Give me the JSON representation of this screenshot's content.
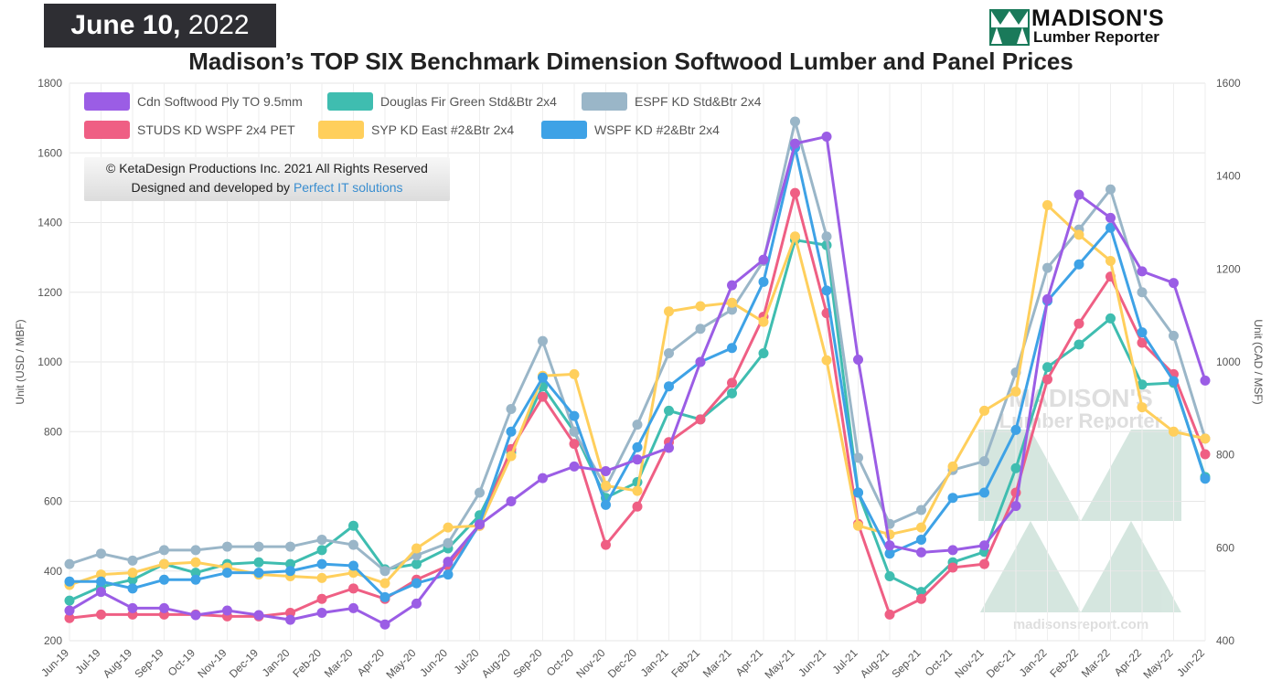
{
  "header": {
    "date_md": "June 10,",
    "date_year": "2022",
    "logo_line1": "MADISON'S",
    "logo_line2": "Lumber Reporter",
    "title": "Madison’s TOP SIX Benchmark Dimension Softwood Lumber and Panel Prices"
  },
  "credits": {
    "line1": "© KetaDesign Productions Inc. 2021 All Rights Reserved",
    "line2_prefix": "Designed and developed by ",
    "line2_link": "Perfect IT solutions"
  },
  "watermark": {
    "line1": "MADISON'S",
    "line2": "Lumber Reporter",
    "url": "madisonsreport.com"
  },
  "chart_data": {
    "type": "line",
    "ylabel_left": "Unit (USD / MBF)",
    "ylabel_right": "Unit (CAD / MSF)",
    "ylim_left": [
      200,
      1800
    ],
    "ylim_right": [
      400,
      1600
    ],
    "yticks_left": [
      200,
      400,
      600,
      800,
      1000,
      1200,
      1400,
      1600,
      1800
    ],
    "yticks_right": [
      400,
      600,
      800,
      1000,
      1200,
      1400,
      1600
    ],
    "grid": true,
    "legend_position": "top-left",
    "categories": [
      "Jun-19",
      "Jul-19",
      "Aug-19",
      "Sep-19",
      "Oct-19",
      "Nov-19",
      "Dec-19",
      "Jan-20",
      "Feb-20",
      "Mar-20",
      "Apr-20",
      "May-20",
      "Jun-20",
      "Jul-20",
      "Aug-20",
      "Sep-20",
      "Oct-20",
      "Nov-20",
      "Dec-20",
      "Jan-21",
      "Feb-21",
      "Mar-21",
      "Apr-21",
      "May-21",
      "Jun-21",
      "Jul-21",
      "Aug-21",
      "Sep-21",
      "Oct-21",
      "Nov-21",
      "Dec-21",
      "Jan-22",
      "Feb-22",
      "Mar-22",
      "Apr-22",
      "May-22",
      "Jun-22"
    ],
    "series": [
      {
        "name": "Cdn Softwood Ply TO 9.5mm",
        "axis": "right",
        "color": "#9b5de5",
        "values": [
          465,
          505,
          470,
          470,
          455,
          465,
          455,
          445,
          460,
          470,
          435,
          480,
          570,
          650,
          700,
          750,
          775,
          765,
          790,
          815,
          1000,
          1165,
          1220,
          1470,
          1485,
          1005,
          605,
          590,
          595,
          605,
          690,
          1135,
          1360,
          1310,
          1195,
          1170,
          960
        ]
      },
      {
        "name": "Douglas Fir Green Std&Btr 2x4",
        "axis": "left",
        "color": "#3fbdb0",
        "values": [
          315,
          355,
          375,
          420,
          395,
          420,
          425,
          420,
          460,
          530,
          405,
          420,
          465,
          560,
          740,
          930,
          800,
          610,
          655,
          860,
          835,
          910,
          1025,
          1350,
          1335,
          625,
          385,
          340,
          425,
          455,
          695,
          985,
          1050,
          1125,
          935,
          940,
          670
        ]
      },
      {
        "name": "ESPF KD Std&Btr 2x4",
        "axis": "left",
        "color": "#9ab6c8",
        "values": [
          420,
          450,
          430,
          460,
          460,
          470,
          470,
          470,
          490,
          475,
          400,
          445,
          480,
          625,
          865,
          1060,
          800,
          640,
          820,
          1025,
          1095,
          1150,
          1290,
          1690,
          1360,
          725,
          535,
          575,
          690,
          715,
          970,
          1270,
          1380,
          1495,
          1200,
          1075,
          780
        ]
      },
      {
        "name": "STUDS KD WSPF 2x4 PET",
        "axis": "left",
        "color": "#ef5f84",
        "values": [
          265,
          275,
          275,
          275,
          275,
          270,
          270,
          280,
          320,
          350,
          320,
          375,
          415,
          530,
          750,
          900,
          765,
          475,
          585,
          770,
          835,
          940,
          1130,
          1485,
          1140,
          535,
          275,
          320,
          410,
          420,
          625,
          950,
          1110,
          1245,
          1055,
          965,
          735
        ]
      },
      {
        "name": "SYP KD East #2&Btr 2x4",
        "axis": "left",
        "color": "#ffcf5c",
        "values": [
          360,
          390,
          395,
          420,
          425,
          410,
          390,
          385,
          380,
          395,
          365,
          465,
          525,
          530,
          730,
          960,
          965,
          645,
          630,
          1145,
          1160,
          1170,
          1115,
          1360,
          1005,
          530,
          505,
          525,
          700,
          860,
          915,
          1450,
          1365,
          1290,
          870,
          800,
          780
        ]
      },
      {
        "name": "WSPF KD #2&Btr 2x4",
        "axis": "left",
        "color": "#3ea2e6",
        "values": [
          370,
          370,
          350,
          375,
          375,
          395,
          395,
          400,
          420,
          415,
          325,
          365,
          390,
          535,
          800,
          955,
          845,
          590,
          755,
          930,
          1000,
          1040,
          1230,
          1615,
          1205,
          625,
          450,
          490,
          610,
          625,
          805,
          1175,
          1280,
          1385,
          1085,
          945,
          665
        ]
      }
    ]
  }
}
